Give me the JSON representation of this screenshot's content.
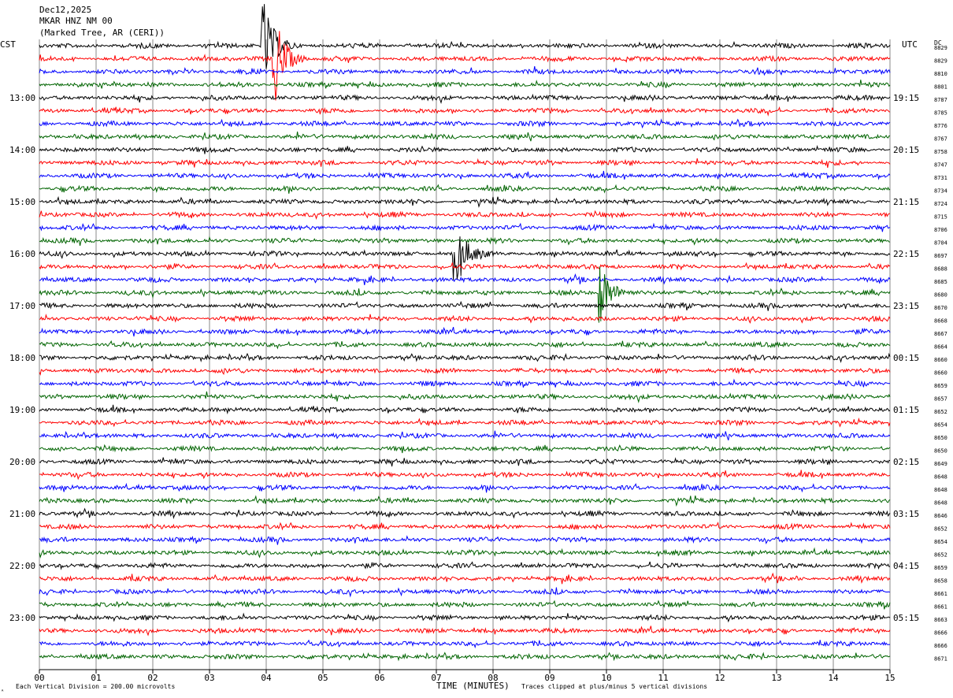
{
  "header": {
    "date": "Dec12,2025",
    "station": "MKAR HNZ NM 00",
    "location": "(Marked Tree, AR (CERI))"
  },
  "labels": {
    "left_tz": "CST",
    "right_tz": "UTC",
    "dc_label": "DC",
    "xlabel": "TIME (MINUTES)",
    "scale_note": "Each Vertical Division =  200.00 microvolts",
    "clip_note": "Traces clipped at plus/minus 5 vertical divisions",
    "corner_mark": "ᴬ"
  },
  "chart_data": {
    "type": "line",
    "title": "MKAR HNZ NM 00",
    "xlabel": "TIME (MINUTES)",
    "xlim": [
      0,
      15
    ],
    "x_ticks": [
      "00",
      "01",
      "02",
      "03",
      "04",
      "05",
      "06",
      "07",
      "08",
      "09",
      "10",
      "11",
      "12",
      "13",
      "14",
      "15"
    ],
    "left_time_labels": [
      "13:00",
      "14:00",
      "15:00",
      "16:00",
      "17:00",
      "18:00",
      "19:00",
      "20:00",
      "21:00",
      "22:00",
      "23:00"
    ],
    "right_time_labels": [
      "19:15",
      "20:15",
      "21:15",
      "22:15",
      "23:15",
      "00:15",
      "01:15",
      "02:15",
      "03:15",
      "04:15",
      "05:15"
    ],
    "trace_colors": [
      "#000000",
      "#ff0000",
      "#0000ff",
      "#006400"
    ],
    "dc_offsets": [
      "8829",
      "8829",
      "8810",
      "8801",
      "8787",
      "8785",
      "8776",
      "8767",
      "8758",
      "8747",
      "8731",
      "8734",
      "8724",
      "8715",
      "8706",
      "8704",
      "8697",
      "8688",
      "8685",
      "8680",
      "8670",
      "8668",
      "8667",
      "8664",
      "8660",
      "8660",
      "8659",
      "8657",
      "8652",
      "8654",
      "8650",
      "8650",
      "8649",
      "8648",
      "8648",
      "8648",
      "8646",
      "8652",
      "8654",
      "8652",
      "8659",
      "8658",
      "8661",
      "8661",
      "8663",
      "8666",
      "8666",
      "8671"
    ],
    "events": [
      {
        "trace": 0,
        "minute": 3.95,
        "amplitude": "clipped"
      },
      {
        "trace": 1,
        "minute": 4.15,
        "amplitude": "clipped"
      },
      {
        "trace": 16,
        "minute": 7.35,
        "amplitude": "large"
      },
      {
        "trace": 19,
        "minute": 9.9,
        "amplitude": "large"
      }
    ]
  }
}
